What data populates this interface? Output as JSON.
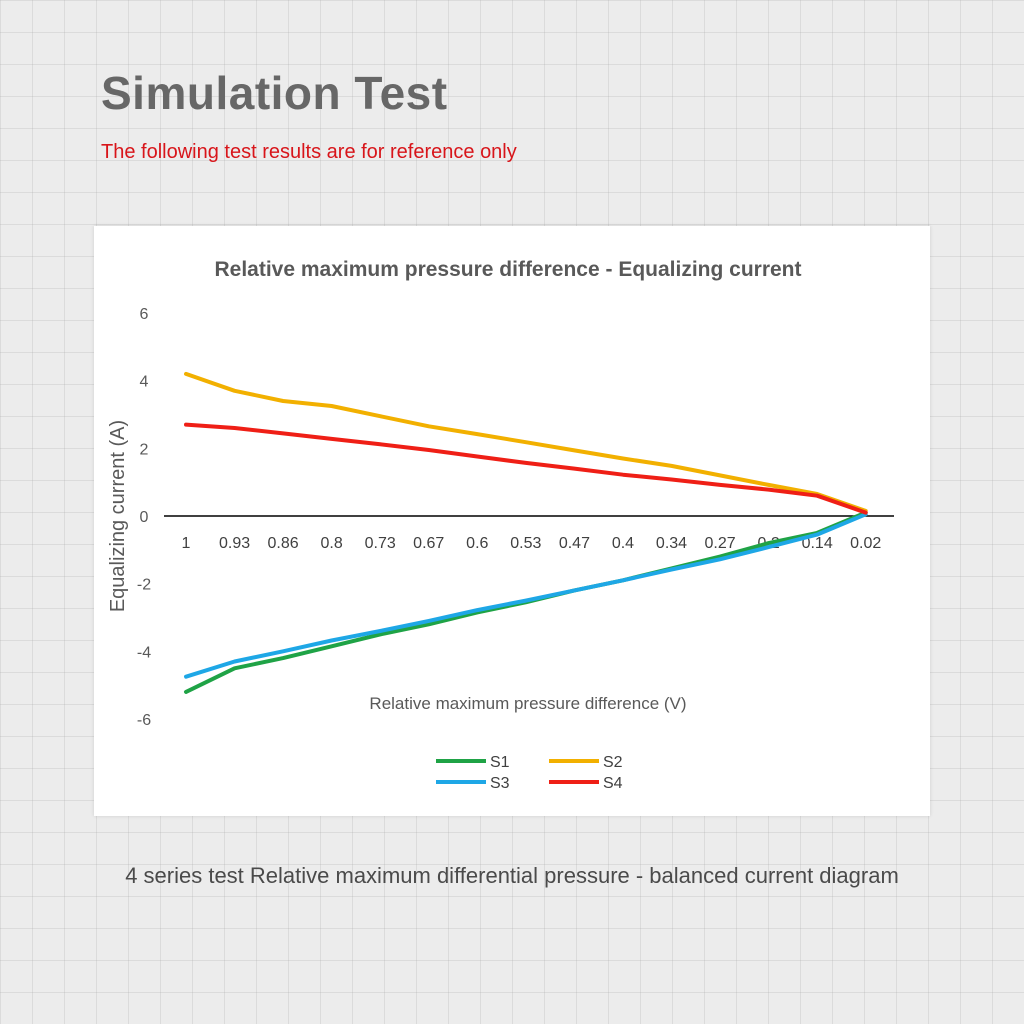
{
  "page": {
    "title": "Simulation Test",
    "subtitle": "The following test results are for reference only",
    "caption": "4 series test  Relative maximum differential pressure - balanced current diagram"
  },
  "chart_data": {
    "type": "line",
    "title": "Relative maximum pressure difference - Equalizing current",
    "xlabel": "Relative maximum pressure difference (V)",
    "ylabel": "Equalizing current (A)",
    "categories": [
      "1",
      "0.93",
      "0.86",
      "0.8",
      "0.73",
      "0.67",
      "0.6",
      "0.53",
      "0.47",
      "0.4",
      "0.34",
      "0.27",
      "0.2",
      "0.14",
      "0.02"
    ],
    "ylim": [
      -6,
      6
    ],
    "yticks": [
      6,
      4,
      2,
      0,
      -2,
      -4,
      -6
    ],
    "grid": false,
    "legend_position": "bottom",
    "series": [
      {
        "name": "S1",
        "color": "#1fa346",
        "values": [
          -5.2,
          -4.5,
          -4.2,
          -3.85,
          -3.5,
          -3.2,
          -2.85,
          -2.55,
          -2.2,
          -1.9,
          -1.55,
          -1.2,
          -0.8,
          -0.5,
          0.1
        ]
      },
      {
        "name": "S2",
        "color": "#f2b000",
        "values": [
          4.2,
          3.7,
          3.4,
          3.25,
          2.95,
          2.65,
          2.42,
          2.18,
          1.94,
          1.7,
          1.48,
          1.2,
          0.92,
          0.65,
          0.15
        ]
      },
      {
        "name": "S3",
        "color": "#1ea7e6",
        "values": [
          -4.75,
          -4.3,
          -4.0,
          -3.68,
          -3.4,
          -3.1,
          -2.78,
          -2.5,
          -2.2,
          -1.9,
          -1.58,
          -1.28,
          -0.92,
          -0.55,
          0.05
        ]
      },
      {
        "name": "S4",
        "color": "#ef1f16",
        "values": [
          2.7,
          2.6,
          2.44,
          2.28,
          2.12,
          1.95,
          1.76,
          1.57,
          1.4,
          1.22,
          1.08,
          0.92,
          0.78,
          0.6,
          0.1
        ]
      }
    ]
  }
}
